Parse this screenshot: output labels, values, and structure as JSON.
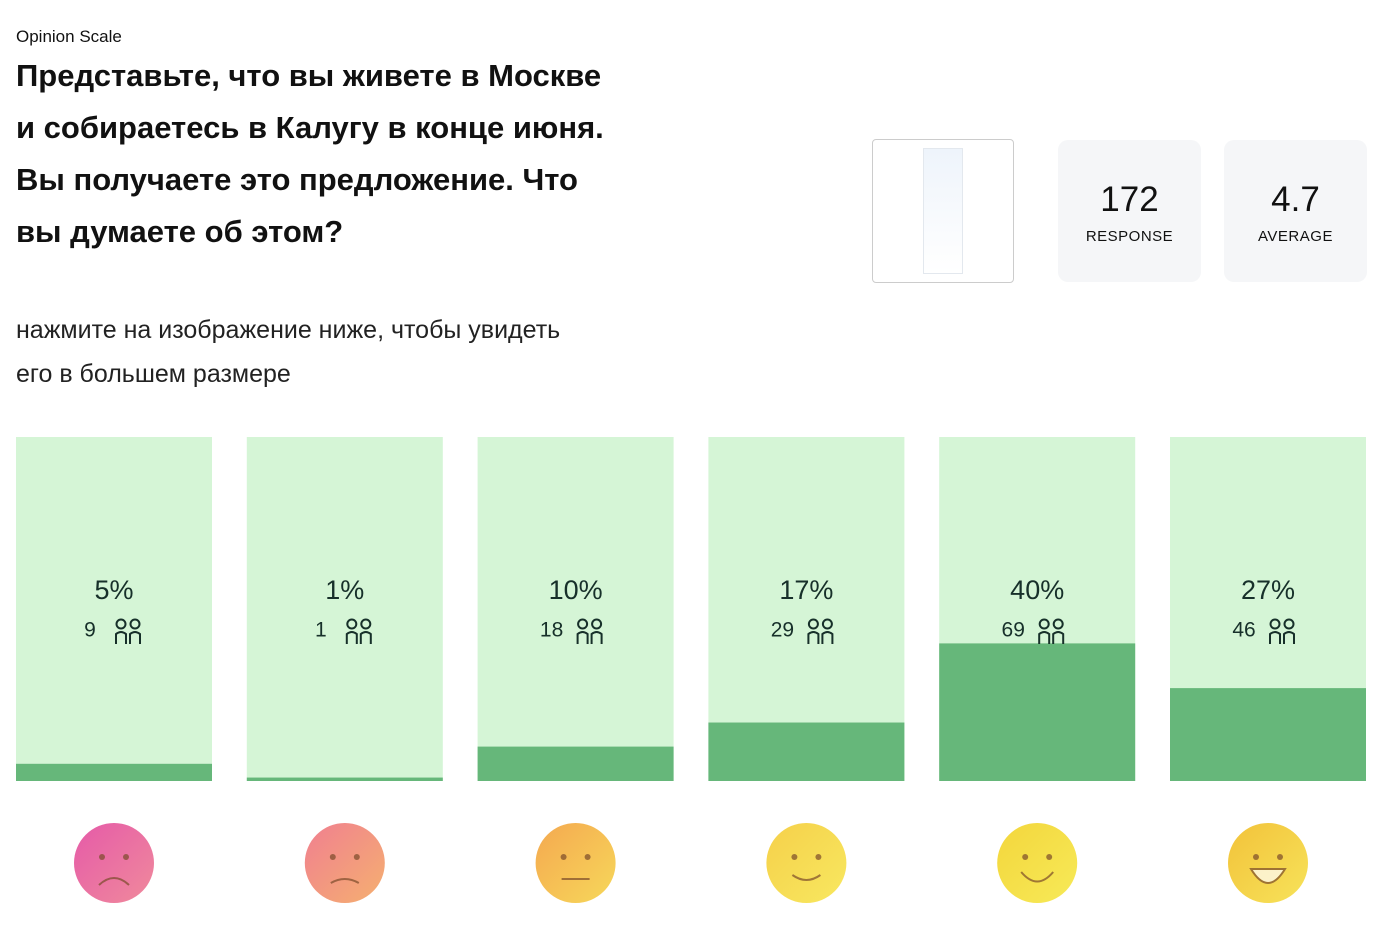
{
  "header": {
    "label": "Opinion Scale",
    "question": "Представьте, что вы живете в Москве и собираетесь в Калугу в конце июня. Вы получаете это предложение. Что вы думаете об этом?",
    "hint": "нажмите на изображение ниже, чтобы увидеть его в большем размере"
  },
  "stats": [
    {
      "value": 172,
      "label": "RESPONSE"
    },
    {
      "value": 4.7,
      "label": "AVERAGE"
    }
  ],
  "chart_data": {
    "type": "bar",
    "values": [
      5,
      1,
      10,
      17,
      40,
      27
    ],
    "value_labels": [
      "5%",
      "1%",
      "10%",
      "17%",
      "40%",
      "27%"
    ],
    "counts": [
      9,
      1,
      18,
      29,
      69,
      46
    ],
    "ylim": [
      0,
      100
    ],
    "color": "#66b77a",
    "track_color": "#d5f5d6"
  }
}
